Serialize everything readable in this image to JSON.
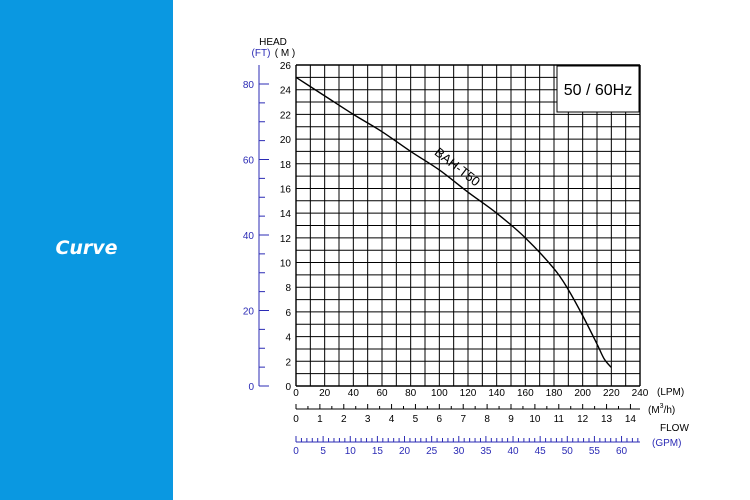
{
  "sidebar": {
    "title": "Curve"
  },
  "chart_data": {
    "type": "line",
    "frequency_label": "50 / 60Hz",
    "axis_title_head": "HEAD",
    "head_units": {
      "ft": "(FT)",
      "m": "( M )"
    },
    "flow_title": "FLOW",
    "lpm_unit": "(LPM)",
    "m3h_unit_main": "(M",
    "m3h_unit_sup": "3",
    "m3h_unit_end": "/h)",
    "gpm_unit": "(GPM)",
    "y_m_ticks": [
      "0",
      "2",
      "4",
      "6",
      "8",
      "10",
      "12",
      "14",
      "16",
      "18",
      "20",
      "22",
      "24",
      "26"
    ],
    "y_ft_ticks": [
      "0",
      "20",
      "40",
      "60",
      "80"
    ],
    "x_lpm_ticks": [
      "0",
      "20",
      "40",
      "60",
      "80",
      "100",
      "120",
      "140",
      "160",
      "180",
      "200",
      "220",
      "240"
    ],
    "x_m3h_ticks": [
      "0",
      "1",
      "2",
      "3",
      "4",
      "5",
      "6",
      "7",
      "8",
      "9",
      "10",
      "11",
      "12",
      "13",
      "14"
    ],
    "x_gpm_ticks": [
      "0",
      "5",
      "10",
      "15",
      "20",
      "25",
      "30",
      "35",
      "40",
      "45",
      "50",
      "55",
      "60"
    ],
    "xlim_lpm": [
      0,
      240
    ],
    "ylim_m": [
      0,
      26
    ],
    "grid": true,
    "colors": {
      "sidebar": "#0a98e1",
      "secondary_axes": "#2b2bb5",
      "main": "#000000"
    },
    "series": [
      {
        "name": "BAH-T50",
        "x": [
          0,
          20,
          40,
          60,
          80,
          100,
          120,
          140,
          160,
          180,
          190,
          200,
          210,
          215,
          220
        ],
        "y": [
          25.0,
          23.5,
          22.0,
          20.6,
          19.0,
          17.5,
          15.7,
          14.0,
          12.0,
          9.5,
          7.8,
          5.7,
          3.4,
          2.2,
          1.5
        ]
      }
    ]
  }
}
